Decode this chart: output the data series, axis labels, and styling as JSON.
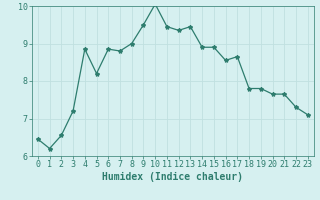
{
  "x": [
    0,
    1,
    2,
    3,
    4,
    5,
    6,
    7,
    8,
    9,
    10,
    11,
    12,
    13,
    14,
    15,
    16,
    17,
    18,
    19,
    20,
    21,
    22,
    23
  ],
  "y": [
    6.45,
    6.2,
    6.55,
    7.2,
    8.85,
    8.2,
    8.85,
    8.8,
    9.0,
    9.5,
    10.05,
    9.45,
    9.35,
    9.45,
    8.9,
    8.9,
    8.55,
    8.65,
    7.8,
    7.8,
    7.65,
    7.65,
    7.3,
    7.1
  ],
  "line_color": "#2e7d6e",
  "bg_color": "#d6f0f0",
  "grid_color": "#c0e0e0",
  "tick_color": "#2e7d6e",
  "xlabel": "Humidex (Indice chaleur)",
  "xlabel_fontsize": 7,
  "tick_fontsize": 6,
  "ylim": [
    6,
    10
  ],
  "xlim": [
    -0.5,
    23.5
  ],
  "yticks": [
    6,
    7,
    8,
    9,
    10
  ],
  "xticks": [
    0,
    1,
    2,
    3,
    4,
    5,
    6,
    7,
    8,
    9,
    10,
    11,
    12,
    13,
    14,
    15,
    16,
    17,
    18,
    19,
    20,
    21,
    22,
    23
  ]
}
